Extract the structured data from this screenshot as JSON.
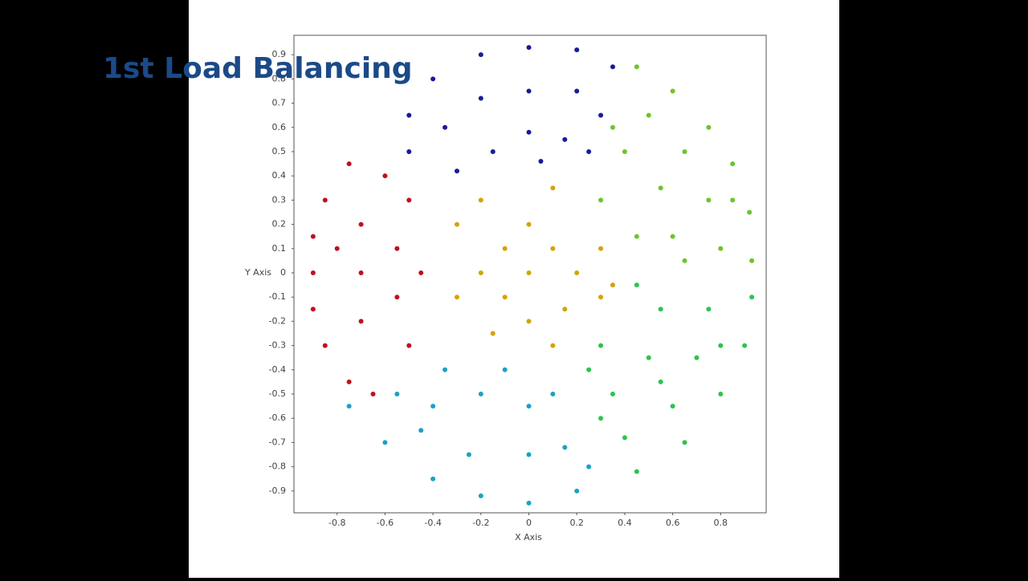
{
  "chart_data": {
    "type": "scatter",
    "title": "1st Load Balancing",
    "x_label": "X Axis",
    "y_label": "Y Axis",
    "xlim": [
      -0.98,
      0.99
    ],
    "ylim": [
      -0.99,
      0.98
    ],
    "xticks": [
      -0.8,
      -0.6,
      -0.4,
      -0.2,
      0,
      0.2,
      0.4,
      0.6,
      0.8
    ],
    "yticks": [
      -0.9,
      -0.8,
      -0.7,
      -0.6,
      -0.5,
      -0.4,
      -0.3,
      -0.2,
      -0.1,
      0,
      0.1,
      0.2,
      0.3,
      0.4,
      0.5,
      0.6,
      0.7,
      0.8,
      0.9
    ],
    "series": [
      {
        "color": "#d4a20a",
        "x": [
          0,
          0.1,
          -0.1,
          0.2,
          -0.2,
          0,
          0,
          -0.3,
          -0.3,
          0.3,
          0.3,
          0.1,
          -0.15,
          0.1,
          -0.2,
          0.15,
          -0.1,
          0.35
        ],
        "y": [
          0,
          0.1,
          0.1,
          0,
          0,
          0.2,
          -0.2,
          0.2,
          -0.1,
          0.1,
          -0.1,
          -0.3,
          -0.25,
          0.35,
          0.3,
          -0.15,
          -0.1,
          -0.05
        ]
      },
      {
        "color": "#c0101e",
        "x": [
          -0.9,
          -0.9,
          -0.9,
          -0.85,
          -0.85,
          -0.75,
          -0.75,
          -0.7,
          -0.7,
          -0.7,
          -0.55,
          -0.55,
          -0.5,
          -0.5,
          -0.6,
          -0.45,
          -0.65,
          -0.8
        ],
        "y": [
          0,
          0.15,
          -0.15,
          0.3,
          -0.3,
          0.45,
          -0.45,
          0,
          0.2,
          -0.2,
          0.1,
          -0.1,
          0.3,
          -0.3,
          0.4,
          0,
          -0.5,
          0.1
        ]
      },
      {
        "color": "#1a1a9a",
        "x": [
          0,
          0.2,
          -0.2,
          -0.4,
          0.35,
          -0.5,
          0,
          0.2,
          -0.2,
          -0.35,
          0.3,
          0,
          -0.15,
          0.15,
          -0.3,
          0.05,
          -0.5,
          0.25
        ],
        "y": [
          0.93,
          0.92,
          0.9,
          0.8,
          0.85,
          0.65,
          0.75,
          0.75,
          0.72,
          0.6,
          0.65,
          0.58,
          0.5,
          0.55,
          0.42,
          0.46,
          0.5,
          0.5
        ]
      },
      {
        "color": "#6cc42a",
        "x": [
          0.45,
          0.6,
          0.75,
          0.85,
          0.92,
          0.93,
          0.5,
          0.65,
          0.75,
          0.8,
          0.4,
          0.55,
          0.6,
          0.3,
          0.45,
          0.65,
          0.35,
          0.85
        ],
        "y": [
          0.85,
          0.75,
          0.6,
          0.45,
          0.25,
          0.05,
          0.65,
          0.5,
          0.3,
          0.1,
          0.5,
          0.35,
          0.15,
          0.3,
          0.15,
          0.05,
          0.6,
          0.3
        ]
      },
      {
        "color": "#2cc44c",
        "x": [
          0.93,
          0.9,
          0.8,
          0.65,
          0.45,
          0.75,
          0.7,
          0.6,
          0.4,
          0.55,
          0.5,
          0.35,
          0.3,
          0.25,
          0.45,
          0.8,
          0.55,
          0.3
        ],
        "y": [
          -0.1,
          -0.3,
          -0.5,
          -0.7,
          -0.82,
          -0.15,
          -0.35,
          -0.55,
          -0.68,
          -0.15,
          -0.35,
          -0.5,
          -0.3,
          -0.4,
          -0.05,
          -0.3,
          -0.45,
          -0.6
        ]
      },
      {
        "color": "#1aa2c4",
        "x": [
          0,
          -0.2,
          0.2,
          -0.4,
          -0.6,
          -0.75,
          0,
          -0.25,
          0.15,
          -0.45,
          -0.55,
          0,
          -0.2,
          0.1,
          -0.35,
          -0.1,
          0.25,
          -0.4
        ],
        "y": [
          -0.95,
          -0.92,
          -0.9,
          -0.85,
          -0.7,
          -0.55,
          -0.75,
          -0.75,
          -0.72,
          -0.65,
          -0.5,
          -0.55,
          -0.5,
          -0.5,
          -0.4,
          -0.4,
          -0.8,
          -0.55
        ]
      }
    ]
  }
}
